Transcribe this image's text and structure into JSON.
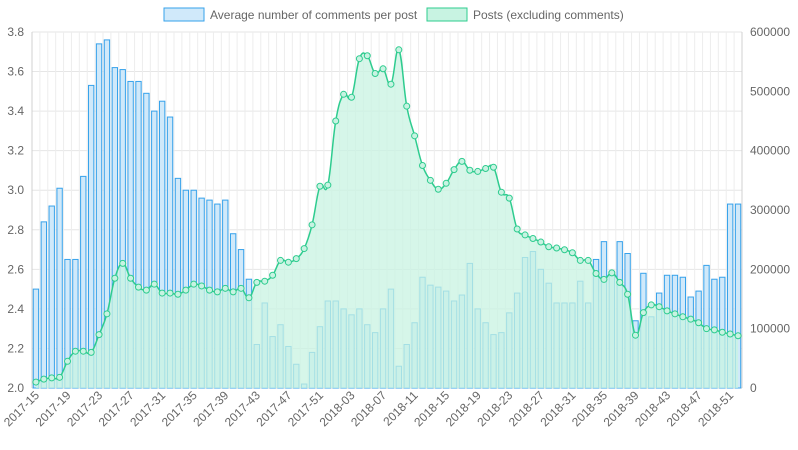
{
  "chart_data": {
    "type": "bar",
    "x": [
      "2017-15",
      "2017-16",
      "2017-17",
      "2017-18",
      "2017-19",
      "2017-20",
      "2017-21",
      "2017-22",
      "2017-23",
      "2017-24",
      "2017-25",
      "2017-26",
      "2017-27",
      "2017-28",
      "2017-29",
      "2017-30",
      "2017-31",
      "2017-32",
      "2017-33",
      "2017-34",
      "2017-35",
      "2017-36",
      "2017-37",
      "2017-38",
      "2017-39",
      "2017-40",
      "2017-41",
      "2017-42",
      "2017-43",
      "2017-44",
      "2017-45",
      "2017-46",
      "2017-47",
      "2017-48",
      "2017-49",
      "2017-50",
      "2017-51",
      "2017-52",
      "2018-01",
      "2018-02",
      "2018-03",
      "2018-04",
      "2018-05",
      "2018-06",
      "2018-07",
      "2018-08",
      "2018-09",
      "2018-10",
      "2018-11",
      "2018-12",
      "2018-13",
      "2018-14",
      "2018-15",
      "2018-16",
      "2018-17",
      "2018-18",
      "2018-19",
      "2018-20",
      "2018-21",
      "2018-22",
      "2018-23",
      "2018-24",
      "2018-25",
      "2018-26",
      "2018-27",
      "2018-28",
      "2018-29",
      "2018-30",
      "2018-31",
      "2018-32",
      "2018-33",
      "2018-34",
      "2018-35",
      "2018-36",
      "2018-37",
      "2018-38",
      "2018-39",
      "2018-40",
      "2018-41",
      "2018-42",
      "2018-43",
      "2018-44",
      "2018-45",
      "2018-46",
      "2018-47",
      "2018-48",
      "2018-49",
      "2018-50",
      "2018-51",
      "2018-52"
    ],
    "x_tick_labels": [
      "2017-15",
      "2017-19",
      "2017-23",
      "2017-27",
      "2017-31",
      "2017-35",
      "2017-39",
      "2017-43",
      "2017-47",
      "2017-51",
      "2018-03",
      "2018-07",
      "2018-11",
      "2018-15",
      "2018-19",
      "2018-23",
      "2018-27",
      "2018-31",
      "2018-35",
      "2018-39",
      "2018-43",
      "2018-47",
      "2018-51"
    ],
    "series": [
      {
        "name": "Average number of comments per post",
        "type": "bar",
        "axis": "left",
        "color": "#36a2eb",
        "fill": "#d0e9fa",
        "values": [
          2.5,
          2.84,
          2.92,
          3.01,
          2.65,
          2.65,
          3.07,
          3.53,
          3.74,
          3.76,
          3.62,
          3.61,
          3.55,
          3.55,
          3.49,
          3.4,
          3.45,
          3.37,
          3.06,
          3.0,
          3.0,
          2.96,
          2.95,
          2.93,
          2.95,
          2.78,
          2.7,
          2.55,
          2.22,
          2.43,
          2.26,
          2.32,
          2.21,
          2.12,
          2.02,
          2.18,
          2.31,
          2.44,
          2.44,
          2.4,
          2.37,
          2.4,
          2.32,
          2.28,
          2.4,
          2.5,
          2.11,
          2.22,
          2.33,
          2.56,
          2.52,
          2.51,
          2.49,
          2.44,
          2.47,
          2.63,
          2.4,
          2.33,
          2.27,
          2.28,
          2.38,
          2.48,
          2.66,
          2.69,
          2.6,
          2.53,
          2.43,
          2.43,
          2.43,
          2.54,
          2.43,
          2.65,
          2.74,
          2.58,
          2.74,
          2.68,
          2.34,
          2.58,
          2.36,
          2.48,
          2.57,
          2.57,
          2.56,
          2.46,
          2.49,
          2.62,
          2.55,
          2.56,
          2.93,
          2.93
        ]
      },
      {
        "name": "Posts (excluding comments)",
        "type": "area",
        "axis": "right",
        "color": "#2ecc8f",
        "fill": "#c8f3e2",
        "values": [
          10000,
          15000,
          17000,
          18000,
          45000,
          62000,
          62000,
          60000,
          90000,
          125000,
          185000,
          210000,
          185000,
          170000,
          165000,
          175000,
          160000,
          160000,
          158000,
          165000,
          175000,
          172000,
          165000,
          162000,
          168000,
          162000,
          168000,
          152000,
          178000,
          180000,
          190000,
          215000,
          212000,
          218000,
          235000,
          275000,
          340000,
          342000,
          450000,
          495000,
          490000,
          555000,
          560000,
          530000,
          538000,
          512000,
          570000,
          475000,
          425000,
          375000,
          350000,
          335000,
          345000,
          368000,
          382000,
          367000,
          365000,
          370000,
          372000,
          330000,
          320000,
          268000,
          258000,
          252000,
          246000,
          238000,
          236000,
          233000,
          228000,
          215000,
          215000,
          193000,
          183000,
          194000,
          178000,
          158000,
          89000,
          127000,
          140000,
          137000,
          130000,
          125000,
          120000,
          116000,
          110000,
          100000,
          98000,
          94000,
          91000,
          88000
        ]
      }
    ],
    "y_left": {
      "min": 2.0,
      "max": 3.8,
      "ticks": [
        "2.0",
        "2.2",
        "2.4",
        "2.6",
        "2.8",
        "3.0",
        "3.2",
        "3.4",
        "3.6",
        "3.8"
      ]
    },
    "y_right": {
      "min": 0,
      "max": 600000,
      "ticks": [
        "0",
        "100000",
        "200000",
        "300000",
        "400000",
        "500000",
        "600000"
      ]
    },
    "title": "",
    "xlabel": "",
    "ylabel": "",
    "grid": true,
    "legend": "top-center"
  }
}
